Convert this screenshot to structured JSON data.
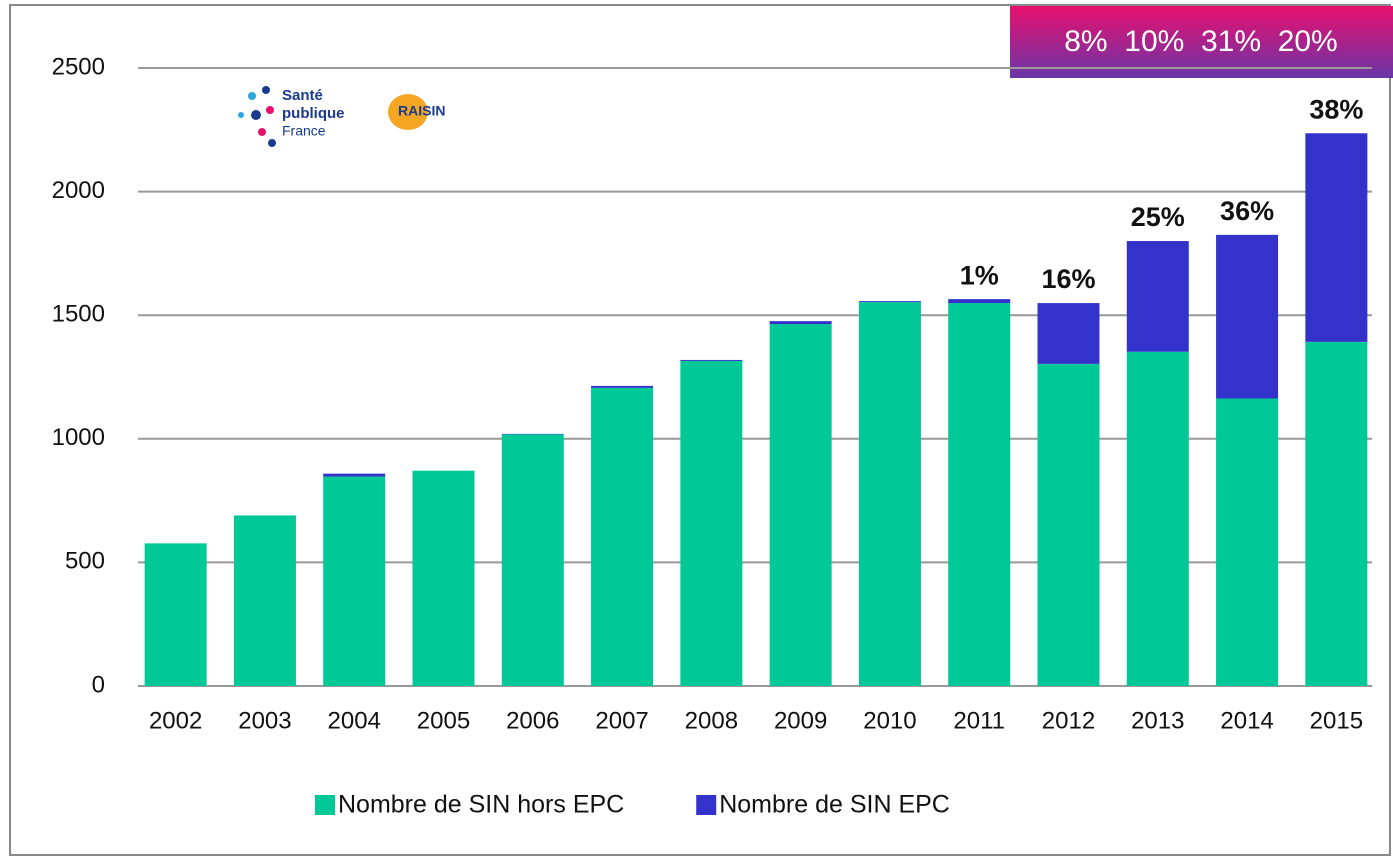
{
  "chart_data": {
    "type": "bar",
    "stacked": true,
    "categories": [
      "2002",
      "2003",
      "2004",
      "2005",
      "2006",
      "2007",
      "2008",
      "2009",
      "2010",
      "2011",
      "2012",
      "2013",
      "2014",
      "2015"
    ],
    "series": [
      {
        "name": "Nombre de SIN hors EPC",
        "color": "#00c896",
        "values": [
          577,
          690,
          847,
          871,
          1018,
          1206,
          1315,
          1464,
          1553,
          1549,
          1303,
          1352,
          1163,
          1392
        ]
      },
      {
        "name": "Nombre de SIN EPC",
        "color": "#3333cc",
        "values": [
          0,
          0,
          12,
          0,
          2,
          8,
          4,
          12,
          4,
          16,
          246,
          448,
          662,
          844
        ]
      }
    ],
    "ylim": [
      0,
      2500
    ],
    "yticks": [
      0,
      500,
      1000,
      1500,
      2000,
      2500
    ],
    "grid": true,
    "legend": "bottom",
    "annotations": [
      {
        "category": "2011",
        "text": "1%"
      },
      {
        "category": "2012",
        "text": "16%"
      },
      {
        "category": "2013",
        "text": "25%"
      },
      {
        "category": "2014",
        "text": "36%"
      },
      {
        "category": "2015",
        "text": "38%"
      }
    ],
    "banner": "8%  10%  31%  20%",
    "logos": [
      "Santé",
      "publique",
      "France",
      "RAISIN"
    ]
  }
}
